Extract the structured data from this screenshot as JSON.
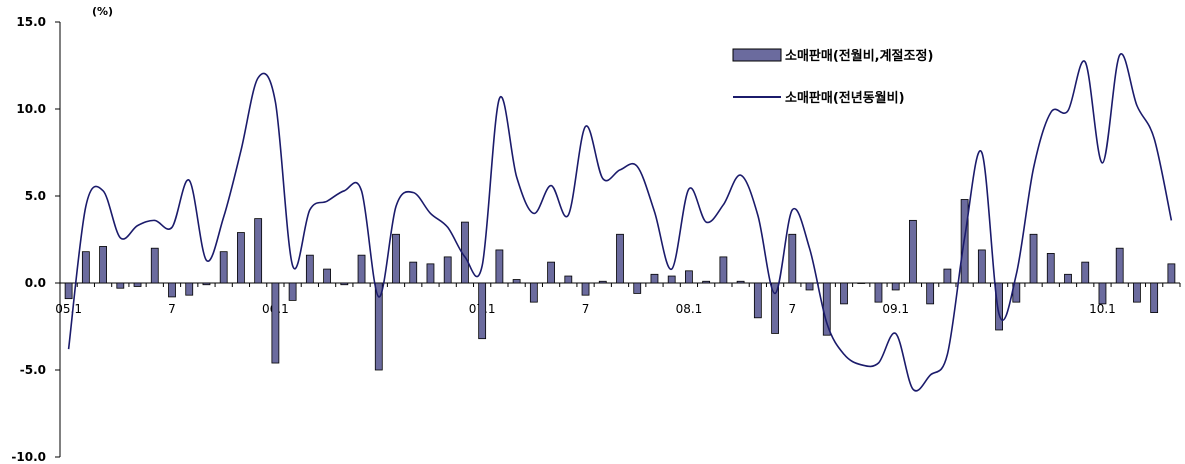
{
  "chart_data": {
    "type": "bar",
    "y_unit_label": "(%)",
    "ylim": [
      -10,
      15
    ],
    "yticks": [
      {
        "value": 15,
        "label": "15.0"
      },
      {
        "value": 10,
        "label": "10.0"
      },
      {
        "value": 5,
        "label": "5.0"
      },
      {
        "value": 0,
        "label": "0.0"
      },
      {
        "value": -5,
        "label": "-5.0"
      },
      {
        "value": -10,
        "label": "-10.0"
      }
    ],
    "xticks": [
      {
        "index": 0,
        "label": "05.1"
      },
      {
        "index": 6,
        "label": "7"
      },
      {
        "index": 12,
        "label": "06.1"
      },
      {
        "index": 18,
        "label": "7"
      },
      {
        "index": 24,
        "label": "07.1"
      },
      {
        "index": 30,
        "label": "7"
      },
      {
        "index": 36,
        "label": "08.1"
      },
      {
        "index": 42,
        "label": "7"
      },
      {
        "index": 48,
        "label": "09.1"
      },
      {
        "index": 54,
        "label": "7"
      },
      {
        "index": 60,
        "label": "10.1"
      }
    ],
    "grid": false,
    "legend_position": "top-right",
    "series": [
      {
        "name": "소매판매(전월비,계절조정)",
        "type": "bar",
        "color": "#6b6b9e",
        "values": [
          -0.9,
          1.8,
          2.1,
          -0.3,
          -0.2,
          2.0,
          -0.8,
          -0.7,
          -0.1,
          1.8,
          2.9,
          3.7,
          -4.6,
          -1.0,
          1.6,
          0.8,
          -0.1,
          1.6,
          -5.0,
          2.8,
          1.2,
          1.1,
          1.5,
          3.5,
          -3.2,
          1.9,
          0.2,
          -1.1,
          1.2,
          0.4,
          -0.7,
          0.1,
          2.8,
          -0.6,
          0.5,
          0.4,
          0.7,
          0.1,
          1.5,
          0.1,
          -2.0,
          -2.9,
          2.8,
          -0.4,
          -3.0,
          -1.2,
          0,
          -1.1,
          -0.4,
          3.6,
          -1.2,
          0.8,
          4.8,
          1.9,
          -2.7,
          -1.1,
          2.8,
          1.7,
          0.5,
          1.2,
          -1.2,
          2.0,
          -1.1,
          -1.7,
          1.1
        ]
      },
      {
        "name": "소매판매(전년동월비)",
        "type": "line",
        "color": "#1b1b6b",
        "values": [
          -3.8,
          4.4,
          5.3,
          2.6,
          3.3,
          3.6,
          3.2,
          5.9,
          1.3,
          3.8,
          7.6,
          11.8,
          10.4,
          1.0,
          4.2,
          4.7,
          5.3,
          5.3,
          -0.8,
          4.4,
          5.2,
          4.0,
          3.2,
          1.5,
          1.0,
          10.6,
          6.1,
          4.0,
          5.6,
          3.9,
          9.0,
          6.0,
          6.5,
          6.7,
          4.1,
          0.8,
          5.4,
          3.5,
          4.5,
          6.2,
          3.9,
          -0.6,
          4.2,
          2.0,
          -2.3,
          -4.1,
          -4.7,
          -4.6,
          -2.9,
          -6.1,
          -5.3,
          -4.1,
          2.6,
          7.5,
          -1.8,
          0.5,
          6.6,
          9.8,
          9.9,
          12.7,
          6.9,
          13.1,
          10.2,
          8.3,
          3.6
        ]
      }
    ]
  }
}
